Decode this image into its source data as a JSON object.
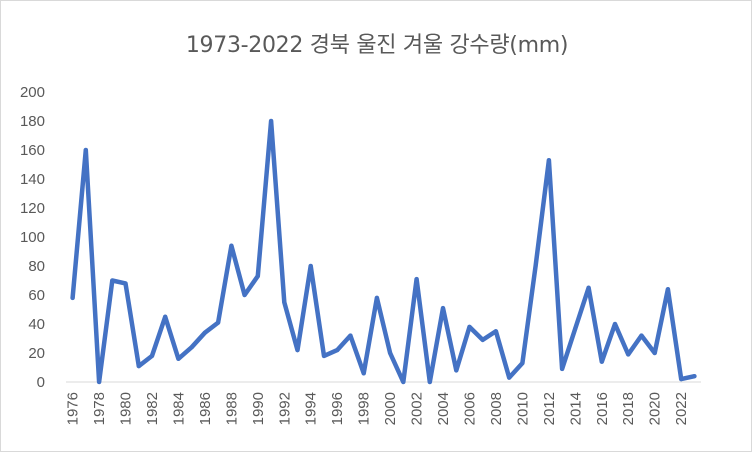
{
  "chart_data": {
    "type": "line",
    "title": "1973-2022 경북 울진 겨울 강수량(mm)",
    "xlabel": "",
    "ylabel": "",
    "ylim": [
      0,
      200
    ],
    "yticks": [
      "0",
      "20",
      "40",
      "60",
      "80",
      "100",
      "120",
      "140",
      "160",
      "180",
      "200"
    ],
    "x": [
      1976,
      1977,
      1978,
      1979,
      1980,
      1981,
      1982,
      1983,
      1984,
      1985,
      1986,
      1987,
      1988,
      1989,
      1990,
      1991,
      1992,
      1993,
      1994,
      1995,
      1996,
      1997,
      1998,
      1999,
      2000,
      2001,
      2002,
      2003,
      2004,
      2005,
      2006,
      2007,
      2008,
      2009,
      2010,
      2011,
      2012,
      2013,
      2014,
      2015,
      2016,
      2017,
      2018,
      2019,
      2020,
      2021,
      2022,
      2023
    ],
    "xtick_labels": [
      "1976",
      "1978",
      "1980",
      "1982",
      "1984",
      "1986",
      "1988",
      "1990",
      "1992",
      "1994",
      "1996",
      "1998",
      "2000",
      "2002",
      "2004",
      "2006",
      "2008",
      "2010",
      "2012",
      "2014",
      "2016",
      "2018",
      "2020",
      "2022"
    ],
    "series": [
      {
        "name": "",
        "color": "#4472c4",
        "values": [
          58,
          160,
          0,
          70,
          68,
          11,
          18,
          45,
          16,
          24,
          34,
          41,
          94,
          60,
          73,
          180,
          55,
          22,
          80,
          18,
          22,
          32,
          6,
          58,
          20,
          0,
          71,
          0,
          51,
          8,
          38,
          29,
          35,
          3,
          13,
          80,
          153,
          9,
          37,
          65,
          14,
          40,
          19,
          32,
          20,
          64,
          2,
          4
        ]
      }
    ],
    "grid": false,
    "legend": "none"
  }
}
